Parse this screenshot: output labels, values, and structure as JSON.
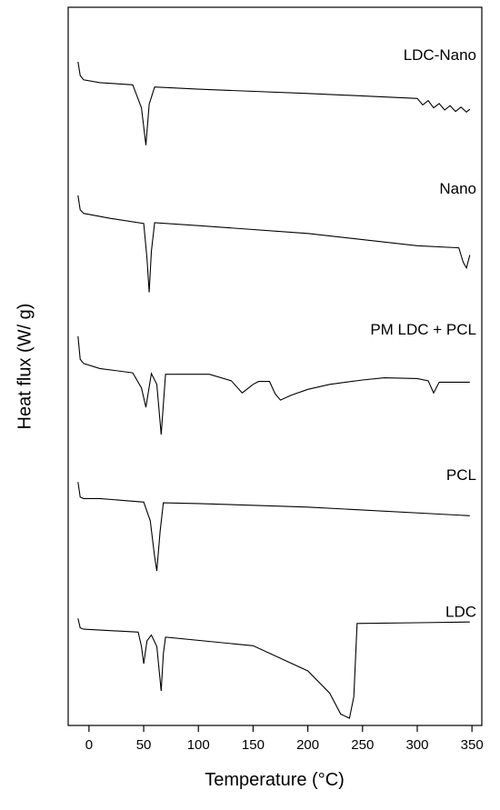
{
  "chart_data": {
    "type": "line",
    "xlabel": "Temperature (°C)",
    "ylabel": "Heat flux (W/ g)",
    "xlim": [
      -19,
      359
    ],
    "xticks": [
      0,
      50,
      100,
      150,
      200,
      250,
      300,
      350
    ],
    "ylim": [
      0,
      100
    ],
    "series": [
      {
        "name": "LDC-Nano",
        "color": "#000000",
        "x": [
          -10,
          -8,
          -5,
          10,
          40,
          48,
          52,
          55,
          60,
          100,
          200,
          300,
          305,
          310,
          315,
          320,
          325,
          330,
          335,
          340,
          345,
          348
        ],
        "values": [
          92.4,
          90.5,
          89.9,
          89.5,
          89.2,
          86.0,
          80.8,
          86.5,
          88.9,
          88.6,
          88.0,
          87.3,
          86.4,
          87.0,
          86.0,
          86.6,
          85.7,
          86.3,
          85.5,
          86.1,
          85.4,
          85.8
        ]
      },
      {
        "name": "Nano",
        "color": "#000000",
        "x": [
          -10,
          -8,
          -5,
          20,
          50,
          53,
          55,
          57,
          60,
          100,
          200,
          300,
          338,
          342,
          345,
          348
        ],
        "values": [
          73.8,
          71.8,
          71.3,
          70.6,
          69.9,
          65.0,
          60.3,
          66.0,
          70.0,
          69.6,
          68.5,
          66.8,
          66.5,
          64.5,
          63.7,
          65.5
        ]
      },
      {
        "name": "PM LDC + PCL",
        "color": "#000000",
        "x": [
          -10,
          -8,
          -5,
          10,
          40,
          48,
          52,
          57,
          62,
          66,
          70,
          110,
          130,
          140,
          150,
          155,
          165,
          170,
          175,
          185,
          200,
          220,
          250,
          270,
          300,
          310,
          315,
          320,
          348
        ],
        "values": [
          54.2,
          51.0,
          50.4,
          49.7,
          49.1,
          47.0,
          44.3,
          49.0,
          47.5,
          40.5,
          48.9,
          48.9,
          48.0,
          46.3,
          47.5,
          47.9,
          47.9,
          46.2,
          45.3,
          46.0,
          46.8,
          47.5,
          48.1,
          48.4,
          48.3,
          48.0,
          46.3,
          47.8,
          47.8
        ]
      },
      {
        "name": "PCL",
        "color": "#000000",
        "x": [
          -10,
          -8,
          -5,
          10,
          50,
          56,
          60,
          62,
          65,
          68,
          100,
          200,
          348
        ],
        "values": [
          33.9,
          31.8,
          31.6,
          31.6,
          31.1,
          28.5,
          23.5,
          21.5,
          27.0,
          31.0,
          30.9,
          30.4,
          29.2
        ]
      },
      {
        "name": "LDC",
        "color": "#000000",
        "x": [
          -10,
          -8,
          -5,
          45,
          48,
          50,
          53,
          57,
          62,
          66,
          68,
          70,
          150,
          200,
          220,
          230,
          238,
          242,
          245,
          300,
          348
        ],
        "values": [
          14.9,
          13.6,
          13.4,
          13.0,
          11.0,
          8.6,
          11.8,
          12.6,
          11.0,
          4.8,
          10.0,
          12.3,
          11.1,
          7.6,
          4.5,
          1.6,
          1.0,
          4.0,
          14.2,
          14.3,
          14.4
        ]
      }
    ]
  }
}
